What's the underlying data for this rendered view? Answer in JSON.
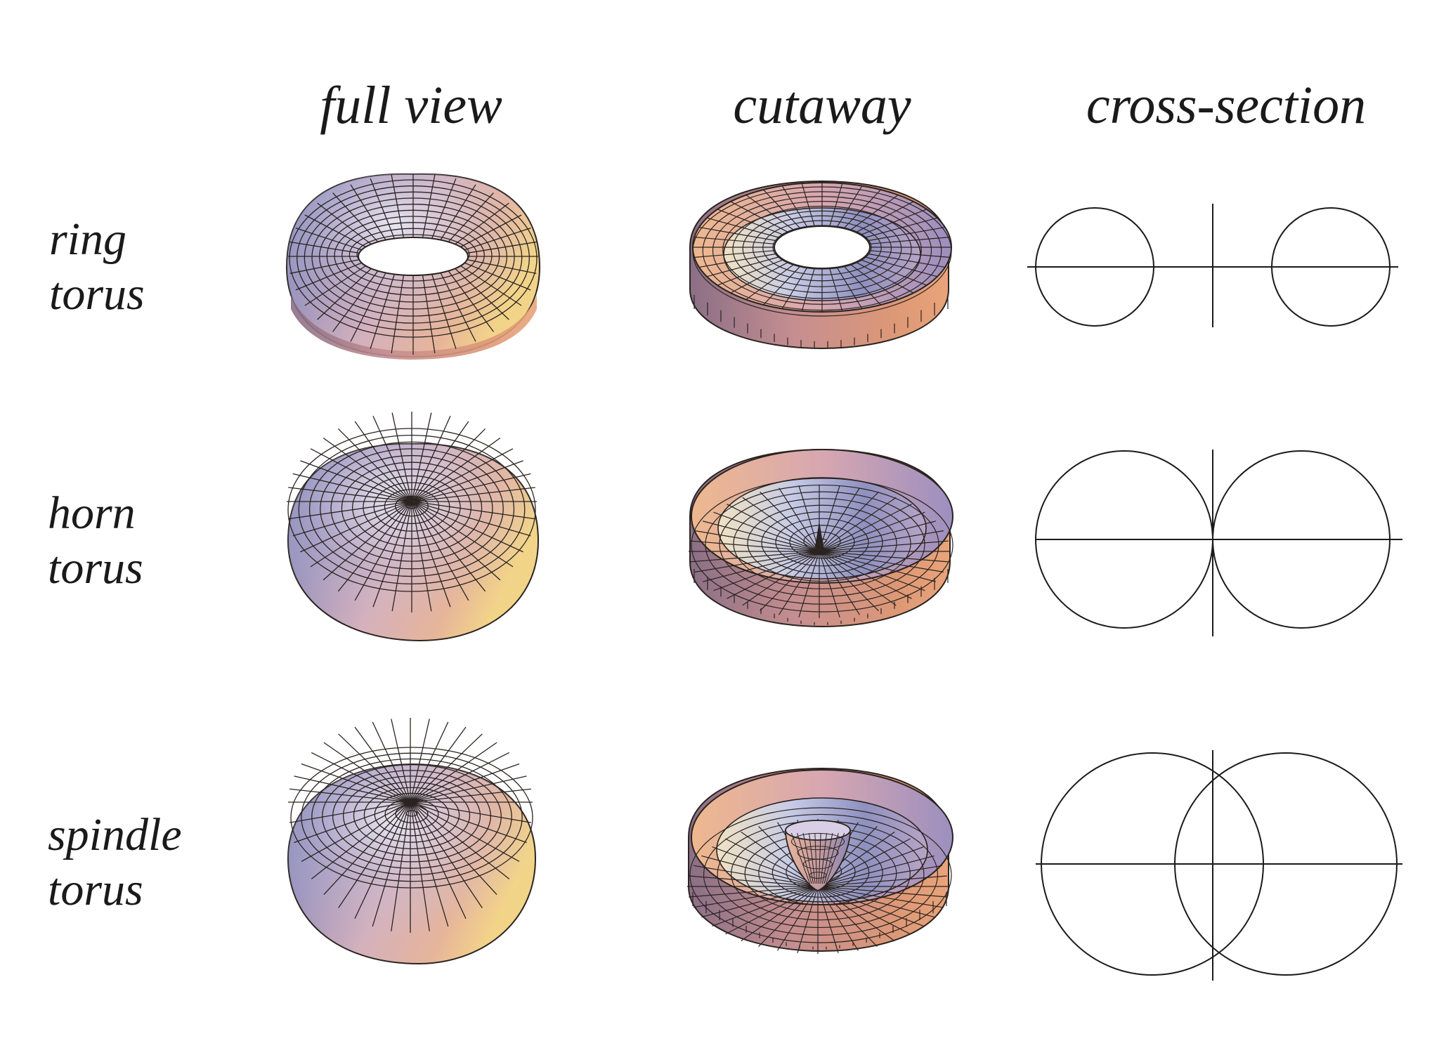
{
  "columns": {
    "full_view": "full view",
    "cutaway": "cutaway",
    "cross_section": "cross-section"
  },
  "rows": [
    {
      "id": "ring",
      "line1": "ring",
      "line2": "torus",
      "center_to_tube_ratio": 1.5
    },
    {
      "id": "horn",
      "line1": "horn",
      "line2": "torus",
      "center_to_tube_ratio": 1.0
    },
    {
      "id": "spindle",
      "line1": "spindle",
      "line2": "torus",
      "center_to_tube_ratio": 0.42
    }
  ],
  "colors": {
    "ink": "#1a1a1a",
    "mesh_line": "#2a2320",
    "shade_blue": "#7d86b8",
    "shade_pink": "#e7c2c6",
    "shade_warm": "#e9a47a",
    "shade_gold": "#f2d489",
    "shade_light": "#eef0fb"
  }
}
